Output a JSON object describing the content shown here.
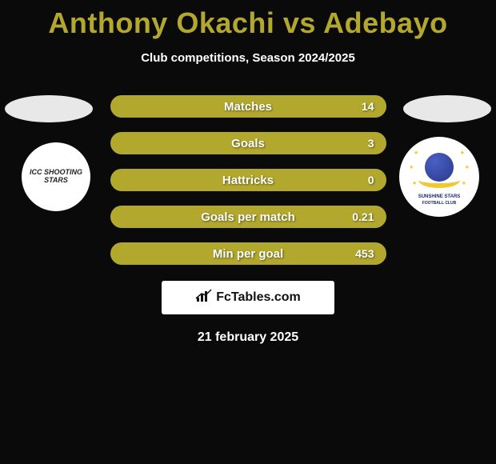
{
  "title": "Anthony Okachi vs Adebayo",
  "subtitle": "Club competitions, Season 2024/2025",
  "colors": {
    "accent": "#b3a82e",
    "background": "#0a0a0a",
    "text_light": "#ffffff"
  },
  "stats": [
    {
      "label": "Matches",
      "right_value": "14"
    },
    {
      "label": "Goals",
      "right_value": "3"
    },
    {
      "label": "Hattricks",
      "right_value": "0"
    },
    {
      "label": "Goals per match",
      "right_value": "0.21"
    },
    {
      "label": "Min per goal",
      "right_value": "453"
    }
  ],
  "clubs": {
    "left": {
      "name": "ICC Shooting Stars",
      "display_text": "ICC SHOOTING STARS"
    },
    "right": {
      "name": "Sunshine Stars Football Club",
      "line1": "SUNSHINE STARS",
      "line2": "FOOTBALL CLUB"
    }
  },
  "attribution": {
    "brand": "FcTables.com",
    "icon": "chart"
  },
  "date": "21 february 2025"
}
